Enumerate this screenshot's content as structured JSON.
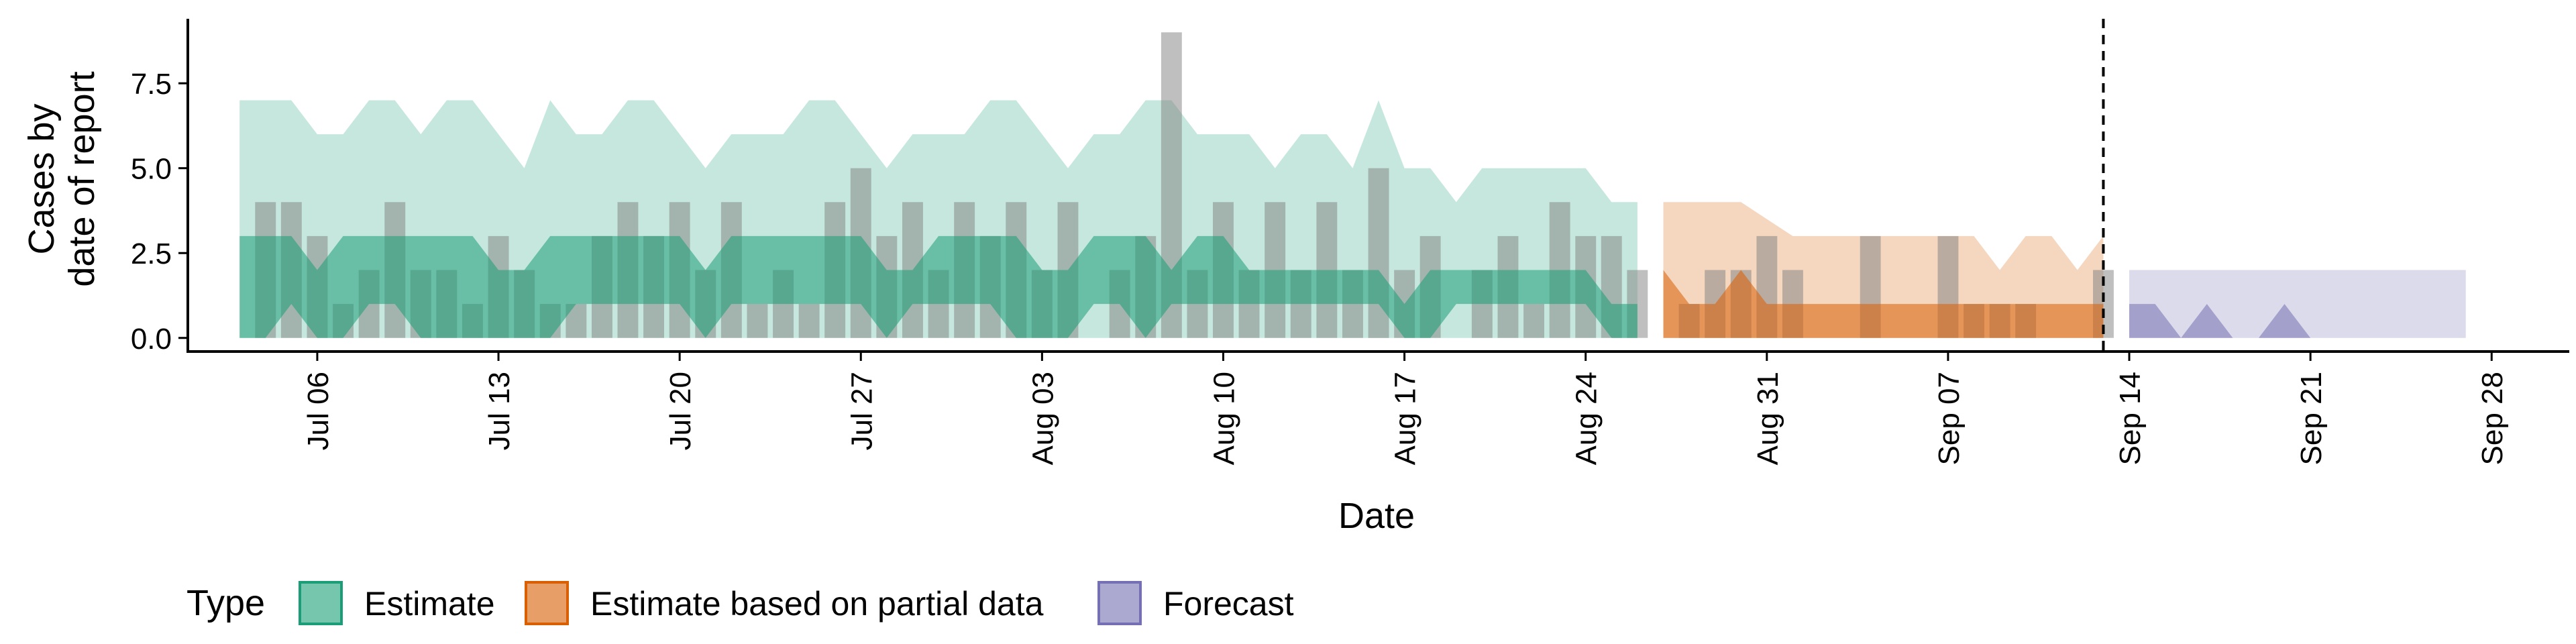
{
  "chart_data": {
    "type": "area",
    "title": "",
    "xlabel": "Date",
    "ylabel_lines": [
      "Cases by",
      "date of report"
    ],
    "x_start": "2020-07-03",
    "x_end": "2020-09-29",
    "xlim": [
      "2020-07-01",
      "2020-10-01"
    ],
    "ylim": [
      -0.4,
      9.4
    ],
    "y_ticks": [
      0.0,
      2.5,
      5.0,
      7.5
    ],
    "y_tick_labels": [
      "0.0",
      "2.5",
      "5.0",
      "7.5"
    ],
    "x_ticks": [
      "2020-07-06",
      "2020-07-13",
      "2020-07-20",
      "2020-07-27",
      "2020-08-03",
      "2020-08-10",
      "2020-08-17",
      "2020-08-24",
      "2020-08-31",
      "2020-09-07",
      "2020-09-14",
      "2020-09-21",
      "2020-09-28"
    ],
    "x_tick_labels": [
      "Jul 06",
      "Jul 13",
      "Jul 20",
      "Jul 27",
      "Aug 03",
      "Aug 10",
      "Aug 17",
      "Aug 24",
      "Aug 31",
      "Sep 07",
      "Sep 14",
      "Sep 21",
      "Sep 28"
    ],
    "vline_date": "2020-09-13",
    "grid": false,
    "legend": {
      "position": "bottom",
      "title": "Type",
      "items": [
        {
          "label": "Estimate",
          "color": "#1b9e77"
        },
        {
          "label": "Estimate based on partial data",
          "color": "#d95f02"
        },
        {
          "label": "Forecast",
          "color": "#7570b3"
        }
      ]
    },
    "bars": {
      "color": "#808080",
      "dates": [
        "2020-07-04",
        "2020-07-05",
        "2020-07-06",
        "2020-07-07",
        "2020-07-08",
        "2020-07-09",
        "2020-07-10",
        "2020-07-11",
        "2020-07-12",
        "2020-07-13",
        "2020-07-14",
        "2020-07-15",
        "2020-07-16",
        "2020-07-17",
        "2020-07-18",
        "2020-07-19",
        "2020-07-20",
        "2020-07-21",
        "2020-07-22",
        "2020-07-23",
        "2020-07-24",
        "2020-07-25",
        "2020-07-26",
        "2020-07-27",
        "2020-07-28",
        "2020-07-29",
        "2020-07-30",
        "2020-07-31",
        "2020-08-01",
        "2020-08-02",
        "2020-08-03",
        "2020-08-04",
        "2020-08-05",
        "2020-08-06",
        "2020-08-07",
        "2020-08-08",
        "2020-08-09",
        "2020-08-10",
        "2020-08-11",
        "2020-08-12",
        "2020-08-13",
        "2020-08-14",
        "2020-08-15",
        "2020-08-16",
        "2020-08-17",
        "2020-08-18",
        "2020-08-19",
        "2020-08-20",
        "2020-08-21",
        "2020-08-22",
        "2020-08-23",
        "2020-08-24",
        "2020-08-25",
        "2020-08-26",
        "2020-08-27",
        "2020-08-28",
        "2020-08-29",
        "2020-08-30",
        "2020-08-31",
        "2020-09-01",
        "2020-09-02",
        "2020-09-03",
        "2020-09-04",
        "2020-09-05",
        "2020-09-06",
        "2020-09-07",
        "2020-09-08",
        "2020-09-09",
        "2020-09-10",
        "2020-09-11",
        "2020-09-12",
        "2020-09-13"
      ],
      "values": [
        4,
        4,
        3,
        1,
        2,
        4,
        2,
        2,
        1,
        3,
        2,
        1,
        1,
        3,
        4,
        3,
        4,
        2,
        4,
        1,
        2,
        1,
        4,
        5,
        3,
        4,
        2,
        4,
        3,
        4,
        2,
        4,
        0,
        2,
        3,
        9,
        2,
        4,
        2,
        4,
        2,
        4,
        2,
        5,
        2,
        3,
        0,
        2,
        3,
        1,
        4,
        3,
        3,
        2,
        0,
        1,
        2,
        2,
        3,
        2,
        0,
        0,
        3,
        0,
        0,
        3,
        1,
        1,
        1,
        0,
        0,
        2
      ]
    },
    "series": [
      {
        "name": "Estimate",
        "color": "#1b9e77",
        "dates": [
          "2020-07-03",
          "2020-07-04",
          "2020-07-05",
          "2020-07-06",
          "2020-07-07",
          "2020-07-08",
          "2020-07-09",
          "2020-07-10",
          "2020-07-11",
          "2020-07-12",
          "2020-07-13",
          "2020-07-14",
          "2020-07-15",
          "2020-07-16",
          "2020-07-17",
          "2020-07-18",
          "2020-07-19",
          "2020-07-20",
          "2020-07-21",
          "2020-07-22",
          "2020-07-23",
          "2020-07-24",
          "2020-07-25",
          "2020-07-26",
          "2020-07-27",
          "2020-07-28",
          "2020-07-29",
          "2020-07-30",
          "2020-07-31",
          "2020-08-01",
          "2020-08-02",
          "2020-08-03",
          "2020-08-04",
          "2020-08-05",
          "2020-08-06",
          "2020-08-07",
          "2020-08-08",
          "2020-08-09",
          "2020-08-10",
          "2020-08-11",
          "2020-08-12",
          "2020-08-13",
          "2020-08-14",
          "2020-08-15",
          "2020-08-16",
          "2020-08-17",
          "2020-08-18",
          "2020-08-19",
          "2020-08-20",
          "2020-08-21",
          "2020-08-22",
          "2020-08-23",
          "2020-08-24",
          "2020-08-25",
          "2020-08-26"
        ],
        "outer_low": [
          0,
          0,
          0,
          0,
          0,
          0,
          0,
          0,
          0,
          0,
          0,
          0,
          0,
          0,
          0,
          0,
          0,
          0,
          0,
          0,
          0,
          0,
          0,
          0,
          0,
          0,
          0,
          0,
          0,
          0,
          0,
          0,
          0,
          0,
          0,
          0,
          0,
          0,
          0,
          0,
          0,
          0,
          0,
          0,
          0,
          0,
          0,
          0,
          0,
          0,
          0,
          0,
          0,
          0,
          0
        ],
        "outer_high": [
          7,
          7,
          7,
          6,
          6,
          7,
          7,
          6,
          7,
          7,
          6,
          5,
          7,
          6,
          6,
          7,
          7,
          6,
          5,
          6,
          6,
          6,
          7,
          7,
          6,
          5,
          6,
          6,
          6,
          7,
          7,
          6,
          5,
          6,
          6,
          7,
          7,
          6,
          6,
          6,
          5,
          6,
          6,
          5,
          7,
          5,
          5,
          4,
          5,
          5,
          5,
          5,
          5,
          4,
          4
        ],
        "inner_low": [
          0,
          0,
          1,
          0,
          0,
          1,
          1,
          0,
          0,
          0,
          0,
          0,
          0,
          1,
          1,
          1,
          1,
          1,
          0,
          1,
          1,
          1,
          1,
          1,
          1,
          0,
          1,
          1,
          1,
          1,
          0,
          0,
          0,
          1,
          1,
          0,
          1,
          1,
          1,
          1,
          1,
          1,
          1,
          1,
          1,
          0,
          0,
          1,
          1,
          1,
          1,
          1,
          1,
          0,
          0
        ],
        "inner_high": [
          3,
          3,
          3,
          2,
          3,
          3,
          3,
          3,
          3,
          3,
          2,
          2,
          3,
          3,
          3,
          3,
          3,
          3,
          2,
          3,
          3,
          3,
          3,
          3,
          3,
          2,
          2,
          3,
          3,
          3,
          3,
          2,
          2,
          3,
          3,
          3,
          2,
          3,
          3,
          2,
          2,
          2,
          2,
          2,
          2,
          1,
          2,
          2,
          2,
          2,
          2,
          2,
          2,
          1,
          1
        ]
      },
      {
        "name": "Estimate based on partial data",
        "color": "#d95f02",
        "dates": [
          "2020-08-27",
          "2020-08-28",
          "2020-08-29",
          "2020-08-30",
          "2020-08-31",
          "2020-09-01",
          "2020-09-02",
          "2020-09-03",
          "2020-09-04",
          "2020-09-05",
          "2020-09-06",
          "2020-09-07",
          "2020-09-08",
          "2020-09-09",
          "2020-09-10",
          "2020-09-11",
          "2020-09-12",
          "2020-09-13"
        ],
        "outer_low": [
          0,
          0,
          0,
          0,
          0,
          0,
          0,
          0,
          0,
          0,
          0,
          0,
          0,
          0,
          0,
          0,
          0,
          0
        ],
        "outer_high": [
          4,
          4,
          4,
          4,
          3.5,
          3,
          3,
          3,
          3,
          3,
          3,
          3,
          3,
          2,
          3,
          3,
          2,
          3
        ],
        "inner_low": [
          0,
          0,
          0,
          0,
          0,
          0,
          0,
          0,
          0,
          0,
          0,
          0,
          0,
          0,
          0,
          0,
          0,
          0
        ],
        "inner_high": [
          2,
          1,
          1,
          2,
          1,
          1,
          1,
          1,
          1,
          1,
          1,
          1,
          1,
          1,
          1,
          1,
          1,
          1
        ]
      },
      {
        "name": "Forecast",
        "color": "#7570b3",
        "dates": [
          "2020-09-14",
          "2020-09-15",
          "2020-09-16",
          "2020-09-17",
          "2020-09-18",
          "2020-09-19",
          "2020-09-20",
          "2020-09-21",
          "2020-09-22",
          "2020-09-23",
          "2020-09-24",
          "2020-09-25",
          "2020-09-26",
          "2020-09-27"
        ],
        "outer_low": [
          0,
          0,
          0,
          0,
          0,
          0,
          0,
          0,
          0,
          0,
          0,
          0,
          0,
          0
        ],
        "outer_high": [
          2,
          2,
          2,
          2,
          2,
          2,
          2,
          2,
          2,
          2,
          2,
          2,
          2,
          2
        ],
        "inner_low": [
          0,
          0,
          0,
          0,
          0,
          0,
          0,
          0,
          0,
          0,
          0,
          0,
          0,
          0
        ],
        "inner_high": [
          1,
          1,
          0,
          1,
          0,
          0,
          1,
          0,
          0,
          0,
          0,
          0,
          0,
          0
        ]
      }
    ]
  }
}
